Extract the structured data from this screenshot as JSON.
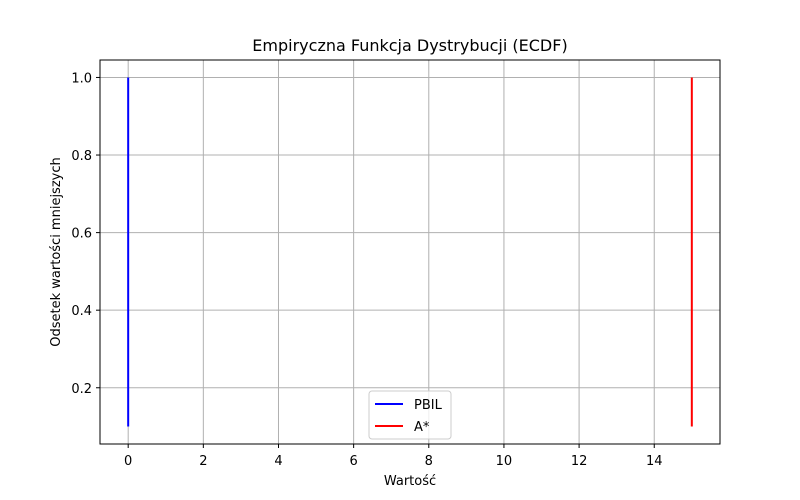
{
  "chart_data": {
    "type": "line",
    "title": "Empiryczna Funkcja Dystrybucji (ECDF)",
    "xlabel": "Wartość",
    "ylabel": "Odsetek wartości mniejszych",
    "xlim": [
      -0.75,
      15.75
    ],
    "ylim": [
      0.055,
      1.045
    ],
    "xticks": [
      0,
      2,
      4,
      6,
      8,
      10,
      12,
      14
    ],
    "yticks": [
      0.2,
      0.4,
      0.6,
      0.8,
      1.0
    ],
    "grid": true,
    "legend_position": "bottom-center",
    "series": [
      {
        "name": "PBIL",
        "color": "#0000ff",
        "x": [
          0,
          0
        ],
        "y": [
          0.1,
          1.0
        ]
      },
      {
        "name": "A*",
        "color": "#ff0000",
        "x": [
          15,
          15
        ],
        "y": [
          0.1,
          1.0
        ]
      }
    ]
  }
}
